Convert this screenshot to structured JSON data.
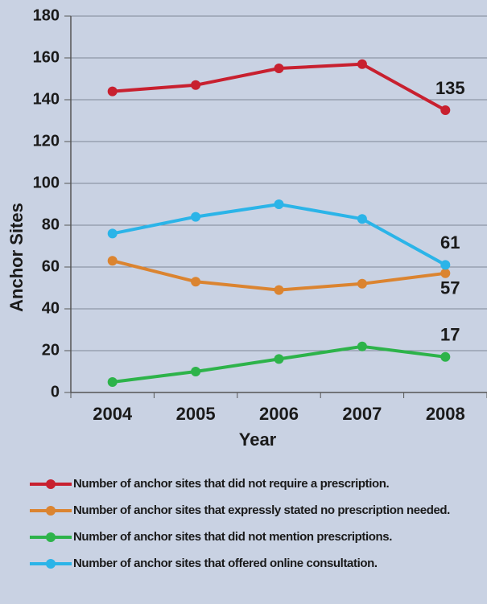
{
  "chart_data": {
    "type": "line",
    "categories": [
      "2004",
      "2005",
      "2006",
      "2007",
      "2008"
    ],
    "series": [
      {
        "name": "Number of anchor sites that did not require a prescription.",
        "color": "#c8202f",
        "values": [
          144,
          147,
          155,
          157,
          135
        ]
      },
      {
        "name": "Number of anchor sites that expressly stated no prescription needed.",
        "color": "#db8430",
        "values": [
          63,
          53,
          49,
          52,
          57
        ]
      },
      {
        "name": "Number of anchor sites that did not mention prescriptions.",
        "color": "#2db34a",
        "values": [
          5,
          10,
          16,
          22,
          17
        ]
      },
      {
        "name": "Number of anchor sites that offered online consultation.",
        "color": "#2bb4e8",
        "values": [
          76,
          84,
          90,
          83,
          61
        ]
      }
    ],
    "label_last": true,
    "xlabel": "Year",
    "ylabel": "Anchor Sites",
    "ylim": [
      0,
      180
    ],
    "yticks": [
      0,
      20,
      40,
      60,
      80,
      100,
      120,
      140,
      160,
      180
    ],
    "grid": true
  }
}
